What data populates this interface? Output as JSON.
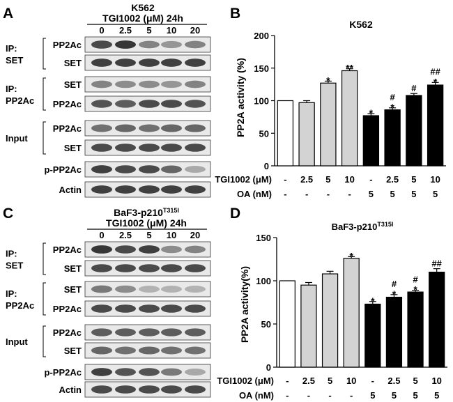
{
  "panel_a": {
    "letter": "A",
    "cell_line": "K562",
    "treatment": "TGI1002 (μM)  24h",
    "doses": [
      "0",
      "2.5",
      "5",
      "10",
      "20"
    ],
    "groups": [
      {
        "label": "IP:\nSET",
        "rows": [
          "PP2Ac",
          "SET"
        ]
      },
      {
        "label": "IP:\nPP2Ac",
        "rows": [
          "SET",
          "PP2Ac"
        ]
      },
      {
        "label": "Input",
        "rows": [
          "PP2Ac",
          "SET"
        ]
      },
      {
        "label": "",
        "rows": [
          "p-PP2Ac"
        ]
      },
      {
        "label": "",
        "rows": [
          "Actin"
        ]
      }
    ],
    "intensities": [
      [
        0.85,
        0.95,
        0.55,
        0.45,
        0.55
      ],
      [
        0.9,
        0.9,
        0.9,
        0.9,
        0.9
      ],
      [
        0.55,
        0.5,
        0.5,
        0.45,
        0.55
      ],
      [
        0.8,
        0.75,
        0.85,
        0.85,
        0.8
      ],
      [
        0.65,
        0.7,
        0.65,
        0.7,
        0.7
      ],
      [
        0.85,
        0.85,
        0.85,
        0.85,
        0.85
      ],
      [
        0.9,
        0.85,
        0.85,
        0.7,
        0.35
      ],
      [
        0.9,
        0.9,
        0.9,
        0.9,
        0.9
      ]
    ]
  },
  "panel_c": {
    "letter": "C",
    "cell_line": "BaF3-p210",
    "cell_line_sup": "T315I",
    "treatment": "TGI1002 (μM)  24h",
    "doses": [
      "0",
      "2.5",
      "5",
      "10",
      "20"
    ],
    "groups": [
      {
        "label": "IP:\nSET",
        "rows": [
          "PP2Ac",
          "SET"
        ]
      },
      {
        "label": "IP:\nPP2Ac",
        "rows": [
          "SET",
          "PP2Ac"
        ]
      },
      {
        "label": "Input",
        "rows": [
          "PP2Ac",
          "SET"
        ]
      },
      {
        "label": "",
        "rows": [
          "p-PP2Ac"
        ]
      },
      {
        "label": "",
        "rows": [
          "Actin"
        ]
      }
    ],
    "intensities": [
      [
        0.95,
        0.85,
        0.9,
        0.5,
        0.55
      ],
      [
        0.85,
        0.85,
        0.85,
        0.85,
        0.85
      ],
      [
        0.6,
        0.5,
        0.3,
        0.3,
        0.3
      ],
      [
        0.85,
        0.85,
        0.85,
        0.85,
        0.85
      ],
      [
        0.75,
        0.75,
        0.75,
        0.75,
        0.75
      ],
      [
        0.7,
        0.65,
        0.7,
        0.65,
        0.65
      ],
      [
        0.9,
        0.8,
        0.8,
        0.6,
        0.35
      ],
      [
        0.85,
        0.85,
        0.85,
        0.85,
        0.85
      ]
    ]
  },
  "chart_data": [
    {
      "type": "bar",
      "letter": "B",
      "title": "K562",
      "title_sup": "",
      "ylabel": "PP2A activity (%)",
      "ylim": [
        0,
        200
      ],
      "yticks": [
        0,
        50,
        100,
        150,
        200
      ],
      "row_labels": [
        "TGI1002 (μM)",
        "OA (nM)"
      ],
      "tgi": [
        "-",
        "2.5",
        "5",
        "10",
        "-",
        "2.5",
        "5",
        "10"
      ],
      "oa": [
        "-",
        "-",
        "-",
        "-",
        "5",
        "5",
        "5",
        "5"
      ],
      "values": [
        100,
        97,
        127,
        146,
        77,
        86,
        108,
        124
      ],
      "errors": [
        0,
        3,
        3,
        3,
        3,
        3,
        3,
        4
      ],
      "fills": [
        "#ffffff",
        "#d3d3d3",
        "#d3d3d3",
        "#d3d3d3",
        "#000000",
        "#000000",
        "#000000",
        "#000000"
      ],
      "annotations": [
        [],
        [],
        [
          "*"
        ],
        [
          "**"
        ],
        [
          "*"
        ],
        [
          "#",
          "*"
        ],
        [
          "#"
        ],
        [
          "##",
          "*"
        ]
      ],
      "grid": false,
      "legend": "none"
    },
    {
      "type": "bar",
      "letter": "D",
      "title": "BaF3-p210",
      "title_sup": "T315I",
      "ylabel": "PP2A activity(%)",
      "ylim": [
        0,
        150
      ],
      "yticks": [
        0,
        50,
        100,
        150
      ],
      "row_labels": [
        "TGI1002 (μM)",
        "OA (nM)"
      ],
      "tgi": [
        "-",
        "2.5",
        "5",
        "10",
        "-",
        "2.5",
        "5",
        "10"
      ],
      "oa": [
        "-",
        "-",
        "-",
        "-",
        "5",
        "5",
        "5",
        "5"
      ],
      "values": [
        100,
        95,
        108,
        126,
        73,
        81,
        87,
        110
      ],
      "errors": [
        0,
        3,
        3,
        2,
        3,
        3,
        2,
        4
      ],
      "fills": [
        "#ffffff",
        "#d3d3d3",
        "#d3d3d3",
        "#d3d3d3",
        "#000000",
        "#000000",
        "#000000",
        "#000000"
      ],
      "annotations": [
        [],
        [],
        [],
        [
          "*"
        ],
        [
          "*"
        ],
        [
          "#",
          "*"
        ],
        [
          "#",
          "*"
        ],
        [
          "##"
        ]
      ],
      "grid": false,
      "legend": "none"
    }
  ]
}
